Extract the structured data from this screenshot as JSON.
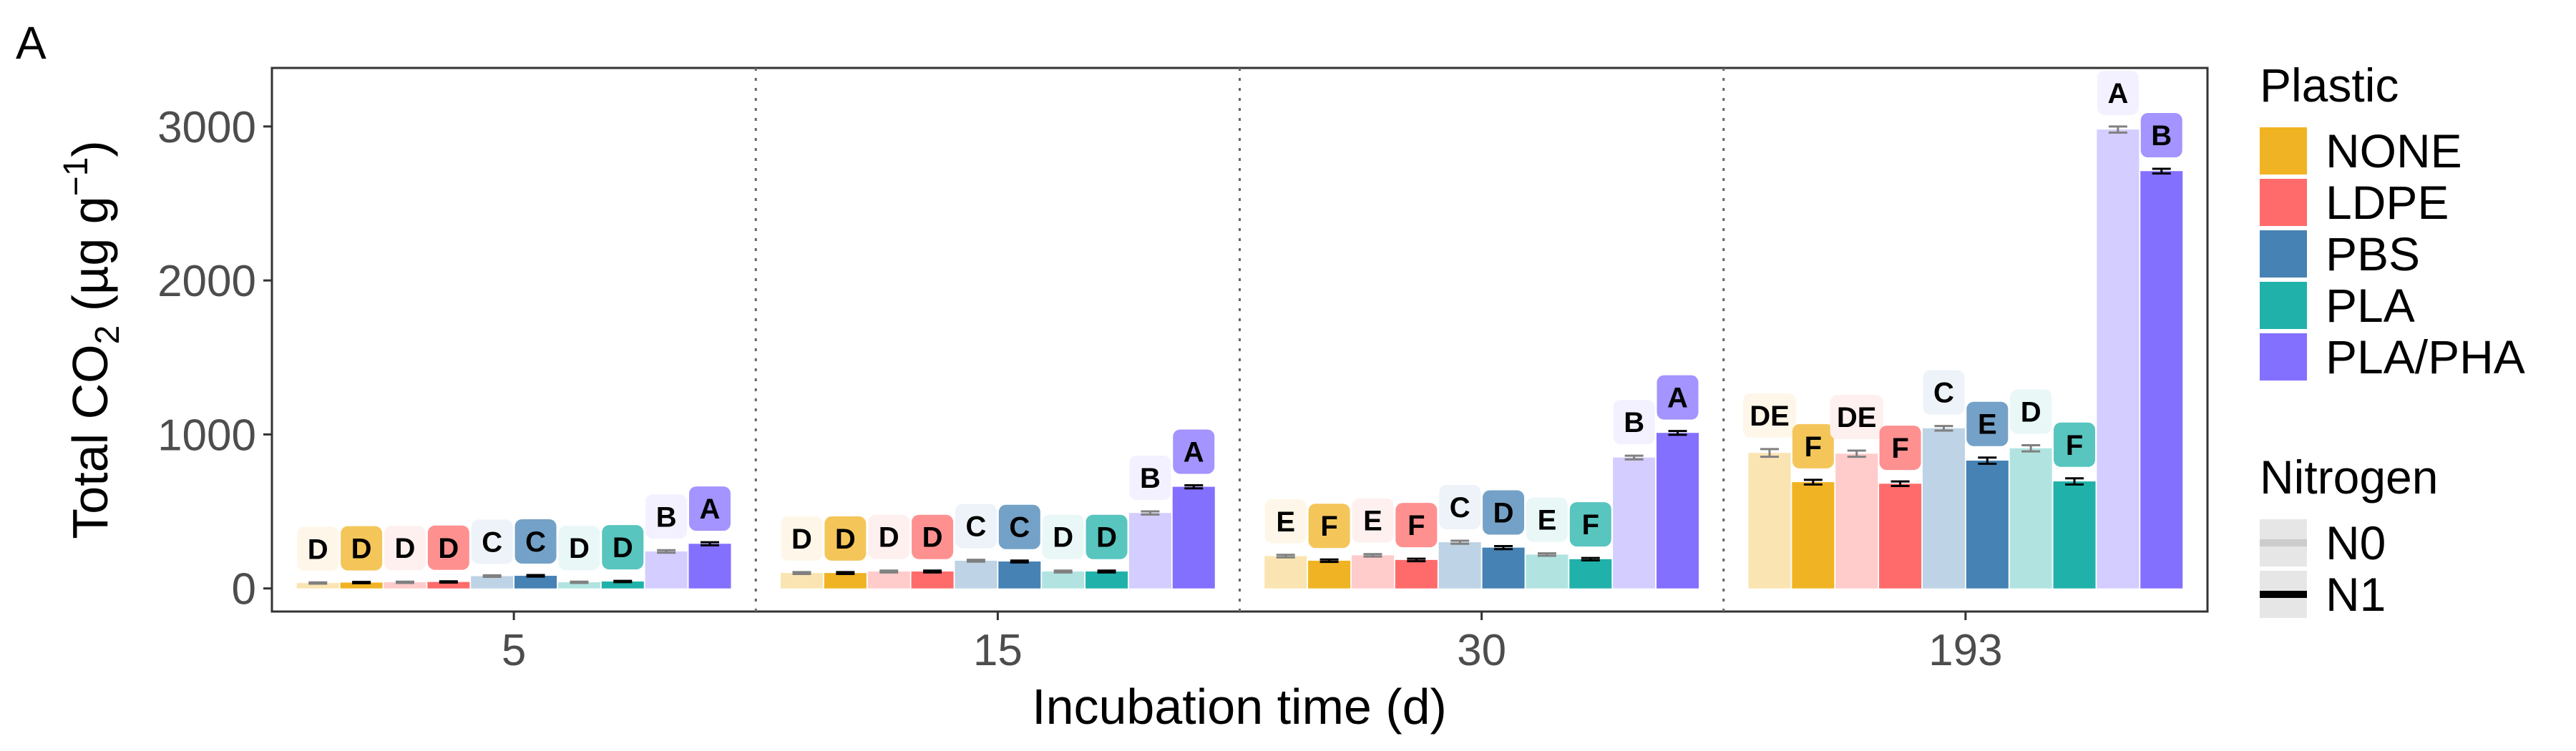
{
  "panel_label": "A",
  "chart_data": {
    "type": "bar",
    "title": "",
    "xlabel": "Incubation time (d)",
    "ylabel": {
      "prefix": "Total CO",
      "subscript": "2",
      "unit_open": " (µg g",
      "superscript": "−1",
      "unit_close": ")"
    },
    "categories": [
      "5",
      "15",
      "30",
      "193"
    ],
    "ylim": [
      -150,
      3380
    ],
    "yticks": [
      0,
      1000,
      2000,
      3000
    ],
    "grid": false,
    "legend_position": "right",
    "legend": {
      "plastic": {
        "title": "Plastic",
        "items": [
          {
            "label": "NONE",
            "color": "#F0B323"
          },
          {
            "label": "LDPE",
            "color": "#FF6B6B"
          },
          {
            "label": "PBS",
            "color": "#4682B4"
          },
          {
            "label": "PLA",
            "color": "#20B2AA"
          },
          {
            "label": "PLA/PHA",
            "color": "#8470FF"
          }
        ]
      },
      "nitrogen": {
        "title": "Nitrogen",
        "items": [
          {
            "label": "N0",
            "alpha": 0.35
          },
          {
            "label": "N1",
            "alpha": 1.0
          }
        ]
      }
    },
    "bar_order": [
      {
        "plastic": "NONE",
        "nitrogen": "N0"
      },
      {
        "plastic": "NONE",
        "nitrogen": "N1"
      },
      {
        "plastic": "LDPE",
        "nitrogen": "N0"
      },
      {
        "plastic": "LDPE",
        "nitrogen": "N1"
      },
      {
        "plastic": "PBS",
        "nitrogen": "N0"
      },
      {
        "plastic": "PBS",
        "nitrogen": "N1"
      },
      {
        "plastic": "PLA",
        "nitrogen": "N0"
      },
      {
        "plastic": "PLA",
        "nitrogen": "N1"
      },
      {
        "plastic": "PLA/PHA",
        "nitrogen": "N0"
      },
      {
        "plastic": "PLA/PHA",
        "nitrogen": "N1"
      }
    ],
    "groups": [
      {
        "time": "5",
        "values": [
          35,
          38,
          40,
          42,
          80,
          82,
          40,
          45,
          240,
          290
        ],
        "errors": [
          4,
          4,
          4,
          4,
          5,
          5,
          4,
          4,
          8,
          10
        ],
        "letters": [
          "D",
          "D",
          "D",
          "D",
          "C",
          "C",
          "D",
          "D",
          "B",
          "A"
        ]
      },
      {
        "time": "15",
        "values": [
          100,
          100,
          110,
          110,
          180,
          175,
          110,
          110,
          490,
          660
        ],
        "errors": [
          6,
          6,
          6,
          6,
          6,
          6,
          6,
          6,
          10,
          10
        ],
        "letters": [
          "D",
          "D",
          "D",
          "D",
          "C",
          "C",
          "D",
          "D",
          "B",
          "A"
        ]
      },
      {
        "time": "30",
        "values": [
          210,
          180,
          215,
          185,
          300,
          265,
          220,
          190,
          850,
          1010
        ],
        "errors": [
          8,
          8,
          8,
          8,
          10,
          10,
          8,
          8,
          12,
          12
        ],
        "letters": [
          "E",
          "F",
          "E",
          "F",
          "C",
          "D",
          "E",
          "F",
          "B",
          "A"
        ]
      },
      {
        "time": "193",
        "values": [
          880,
          690,
          875,
          680,
          1040,
          830,
          910,
          695,
          2980,
          2710
        ],
        "errors": [
          25,
          15,
          20,
          15,
          15,
          20,
          20,
          20,
          20,
          15
        ],
        "letters": [
          "DE",
          "F",
          "DE",
          "F",
          "C",
          "E",
          "D",
          "F",
          "A",
          "B"
        ]
      }
    ]
  }
}
